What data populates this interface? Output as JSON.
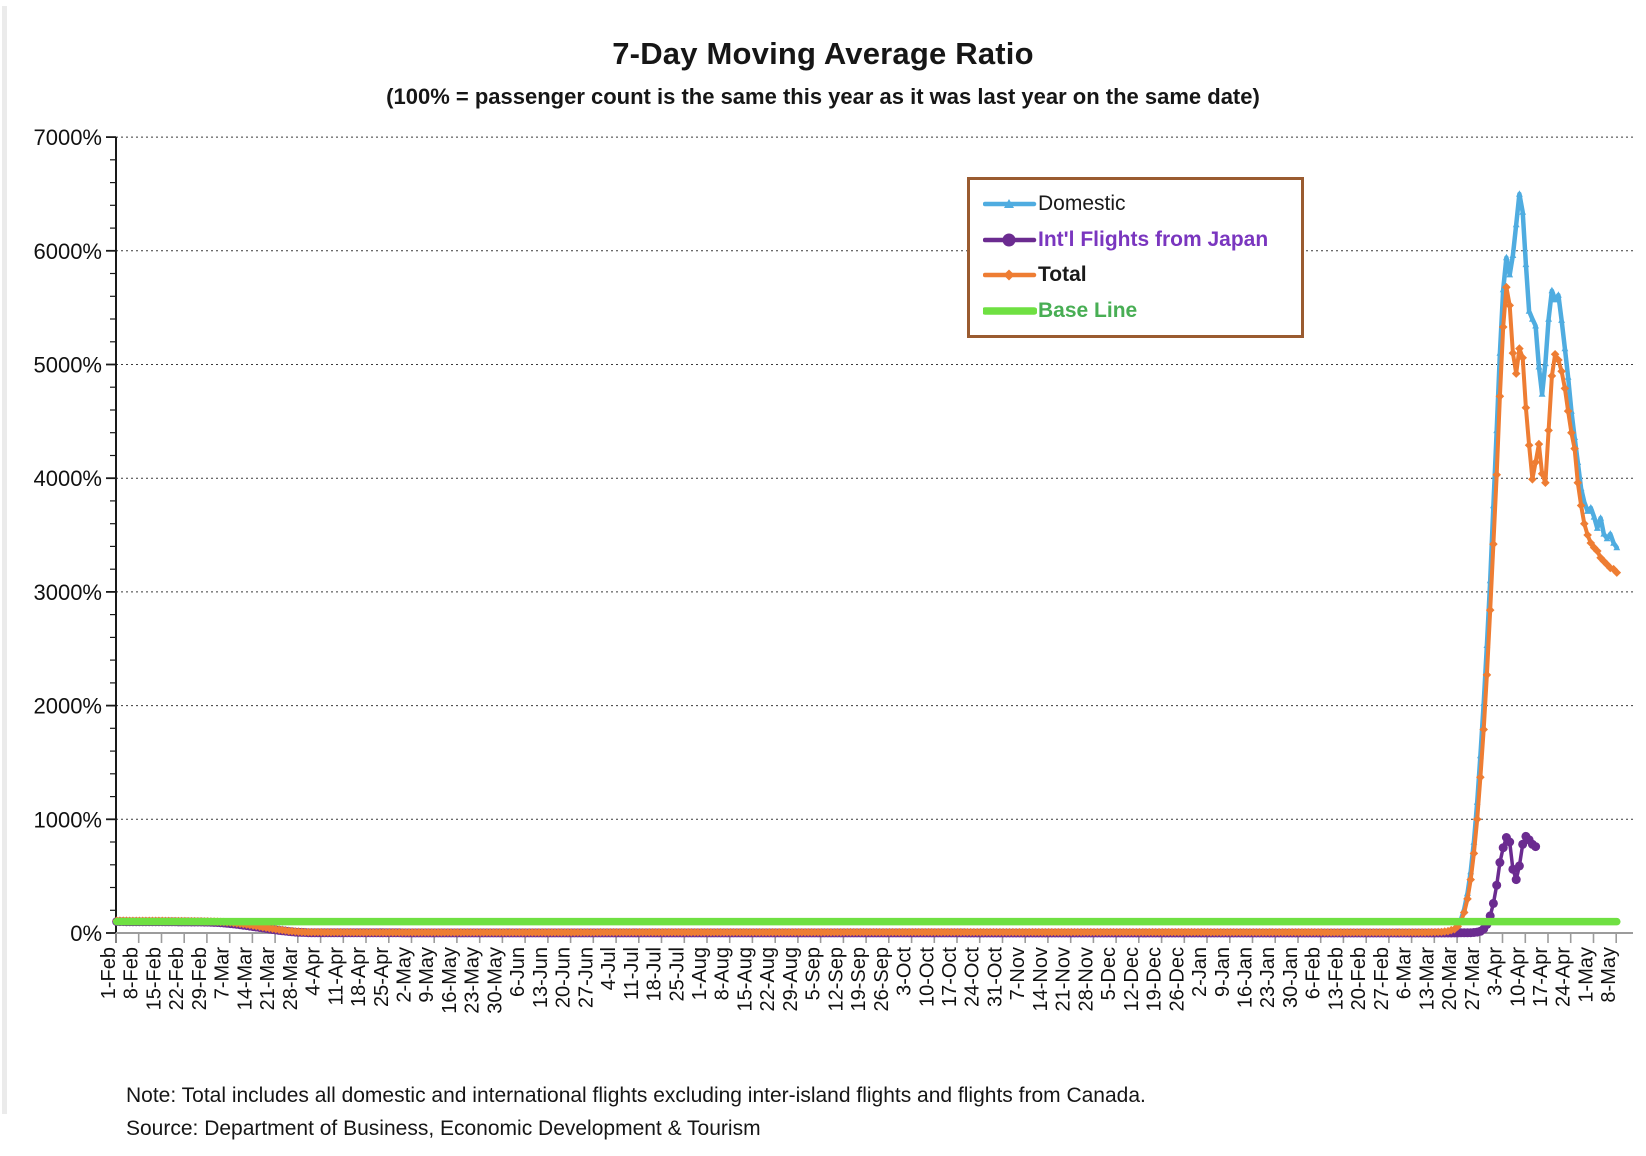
{
  "chart_data": {
    "type": "line",
    "title": "7-Day Moving Average Ratio",
    "subtitle": "(100% = passenger count is the same this year as it was last year on the same date)",
    "grid": "horizontal-dotted",
    "x_axis": {
      "tick_interval_days": 7,
      "label_rotation_deg": -90,
      "tick_labels": [
        "1-Feb",
        "8-Feb",
        "15-Feb",
        "22-Feb",
        "29-Feb",
        "7-Mar",
        "14-Mar",
        "21-Mar",
        "28-Mar",
        "4-Apr",
        "11-Apr",
        "18-Apr",
        "25-Apr",
        "2-May",
        "9-May",
        "16-May",
        "23-May",
        "30-May",
        "6-Jun",
        "13-Jun",
        "20-Jun",
        "27-Jun",
        "4-Jul",
        "11-Jul",
        "18-Jul",
        "25-Jul",
        "1-Aug",
        "8-Aug",
        "15-Aug",
        "22-Aug",
        "29-Aug",
        "5-Sep",
        "12-Sep",
        "19-Sep",
        "26-Sep",
        "3-Oct",
        "10-Oct",
        "17-Oct",
        "24-Oct",
        "31-Oct",
        "7-Nov",
        "14-Nov",
        "21-Nov",
        "28-Nov",
        "5-Dec",
        "12-Dec",
        "19-Dec",
        "26-Dec",
        "2-Jan",
        "9-Jan",
        "16-Jan",
        "23-Jan",
        "30-Jan",
        "6-Feb",
        "13-Feb",
        "20-Feb",
        "27-Feb",
        "6-Mar",
        "13-Mar",
        "20-Mar",
        "27-Mar",
        "3-Apr",
        "10-Apr",
        "17-Apr",
        "24-Apr",
        "1-May",
        "8-May"
      ]
    },
    "y_axis": {
      "min": 0,
      "max": 7000,
      "major_step_pct": 1000,
      "minor_step_pct": 200,
      "tick_labels": [
        "0%",
        "1000%",
        "2000%",
        "3000%",
        "4000%",
        "5000%",
        "6000%",
        "7000%"
      ]
    },
    "legend": {
      "position": "top-right",
      "border_color": "#9A5B30"
    },
    "series": [
      {
        "name": "Domestic",
        "color": "#4FACE0",
        "marker": "triangle",
        "line_width": 4.5,
        "label_color": "#1A1A1A",
        "label_bold": false,
        "points": [
          [
            0,
            103
          ],
          [
            14,
            103
          ],
          [
            28,
            101
          ],
          [
            33,
            99
          ],
          [
            36,
            94
          ],
          [
            39,
            87
          ],
          [
            42,
            76
          ],
          [
            45,
            62
          ],
          [
            48,
            47
          ],
          [
            51,
            33
          ],
          [
            54,
            21
          ],
          [
            57,
            12
          ],
          [
            60,
            7
          ],
          [
            80,
            5
          ],
          [
            120,
            5
          ],
          [
            160,
            6
          ],
          [
            200,
            7
          ],
          [
            240,
            8
          ],
          [
            280,
            7
          ],
          [
            320,
            6
          ],
          [
            360,
            5
          ],
          [
            400,
            5
          ],
          [
            405,
            6
          ],
          [
            408,
            10
          ],
          [
            410,
            18
          ],
          [
            412,
            38
          ],
          [
            413,
            65
          ],
          [
            414,
            120
          ],
          [
            415,
            210
          ],
          [
            416,
            350
          ],
          [
            417,
            540
          ],
          [
            418,
            800
          ],
          [
            419,
            1150
          ],
          [
            420,
            1560
          ],
          [
            421,
            2020
          ],
          [
            422,
            2530
          ],
          [
            423,
            3100
          ],
          [
            424,
            3760
          ],
          [
            425,
            4420
          ],
          [
            426,
            5100
          ],
          [
            427,
            5660
          ],
          [
            428,
            5940
          ],
          [
            429,
            5790
          ],
          [
            430,
            5960
          ],
          [
            431,
            6230
          ],
          [
            432,
            6500
          ],
          [
            433,
            6340
          ],
          [
            434,
            5880
          ],
          [
            435,
            5470
          ],
          [
            436,
            5400
          ],
          [
            437,
            5340
          ],
          [
            438,
            4980
          ],
          [
            439,
            4740
          ],
          [
            440,
            5010
          ],
          [
            441,
            5400
          ],
          [
            442,
            5650
          ],
          [
            443,
            5570
          ],
          [
            444,
            5610
          ],
          [
            445,
            5390
          ],
          [
            446,
            5140
          ],
          [
            447,
            4890
          ],
          [
            448,
            4590
          ],
          [
            449,
            4360
          ],
          [
            450,
            4140
          ],
          [
            451,
            3910
          ],
          [
            452,
            3790
          ],
          [
            453,
            3710
          ],
          [
            454,
            3740
          ],
          [
            455,
            3660
          ],
          [
            456,
            3560
          ],
          [
            457,
            3650
          ],
          [
            458,
            3510
          ],
          [
            459,
            3470
          ],
          [
            460,
            3510
          ],
          [
            461,
            3430
          ],
          [
            462,
            3390
          ]
        ]
      },
      {
        "name": "Int'l Flights from Japan",
        "color": "#6B2B90",
        "marker": "circle",
        "line_width": 3.5,
        "label_color": "#7A36BF",
        "label_bold": true,
        "points": [
          [
            0,
            100
          ],
          [
            14,
            99
          ],
          [
            28,
            96
          ],
          [
            32,
            91
          ],
          [
            35,
            83
          ],
          [
            38,
            73
          ],
          [
            41,
            61
          ],
          [
            44,
            48
          ],
          [
            47,
            35
          ],
          [
            50,
            23
          ],
          [
            53,
            13
          ],
          [
            56,
            6
          ],
          [
            60,
            2
          ],
          [
            100,
            1
          ],
          [
            200,
            1
          ],
          [
            250,
            1
          ],
          [
            270,
            0
          ],
          [
            340,
            0
          ],
          [
            400,
            0
          ],
          [
            410,
            0
          ],
          [
            413,
            1
          ],
          [
            416,
            2
          ],
          [
            418,
            4
          ],
          [
            419,
            8
          ],
          [
            420,
            15
          ],
          [
            421,
            35
          ],
          [
            422,
            75
          ],
          [
            423,
            150
          ],
          [
            424,
            260
          ],
          [
            425,
            420
          ],
          [
            426,
            620
          ],
          [
            427,
            750
          ],
          [
            428,
            840
          ],
          [
            429,
            800
          ],
          [
            430,
            560
          ],
          [
            431,
            470
          ],
          [
            432,
            590
          ],
          [
            433,
            780
          ],
          [
            434,
            850
          ],
          [
            435,
            820
          ],
          [
            436,
            780
          ],
          [
            437,
            760
          ]
        ]
      },
      {
        "name": "Total",
        "color": "#EE7D33",
        "marker": "diamond",
        "line_width": 4,
        "label_color": "#1A1A1A",
        "label_bold": true,
        "points": [
          [
            0,
            108
          ],
          [
            14,
            107
          ],
          [
            28,
            102
          ],
          [
            32,
            98
          ],
          [
            35,
            92
          ],
          [
            38,
            82
          ],
          [
            41,
            70
          ],
          [
            44,
            56
          ],
          [
            47,
            42
          ],
          [
            50,
            29
          ],
          [
            53,
            18
          ],
          [
            56,
            11
          ],
          [
            59,
            7
          ],
          [
            80,
            5
          ],
          [
            120,
            5
          ],
          [
            160,
            6
          ],
          [
            200,
            6
          ],
          [
            240,
            7
          ],
          [
            280,
            7
          ],
          [
            320,
            7
          ],
          [
            360,
            6
          ],
          [
            400,
            5
          ],
          [
            405,
            6
          ],
          [
            408,
            9
          ],
          [
            410,
            16
          ],
          [
            412,
            33
          ],
          [
            413,
            58
          ],
          [
            414,
            105
          ],
          [
            415,
            180
          ],
          [
            416,
            300
          ],
          [
            417,
            470
          ],
          [
            418,
            700
          ],
          [
            419,
            1000
          ],
          [
            420,
            1370
          ],
          [
            421,
            1790
          ],
          [
            422,
            2270
          ],
          [
            423,
            2840
          ],
          [
            424,
            3420
          ],
          [
            425,
            4030
          ],
          [
            426,
            4720
          ],
          [
            427,
            5330
          ],
          [
            428,
            5680
          ],
          [
            429,
            5520
          ],
          [
            430,
            5100
          ],
          [
            431,
            4920
          ],
          [
            432,
            5140
          ],
          [
            433,
            5060
          ],
          [
            434,
            4620
          ],
          [
            435,
            4290
          ],
          [
            436,
            3990
          ],
          [
            437,
            4140
          ],
          [
            438,
            4300
          ],
          [
            439,
            4040
          ],
          [
            440,
            3960
          ],
          [
            441,
            4420
          ],
          [
            442,
            4900
          ],
          [
            443,
            5090
          ],
          [
            444,
            5040
          ],
          [
            445,
            4940
          ],
          [
            446,
            4790
          ],
          [
            447,
            4590
          ],
          [
            448,
            4400
          ],
          [
            449,
            4260
          ],
          [
            450,
            3960
          ],
          [
            451,
            3760
          ],
          [
            452,
            3600
          ],
          [
            453,
            3500
          ],
          [
            454,
            3430
          ],
          [
            455,
            3390
          ],
          [
            456,
            3360
          ],
          [
            457,
            3300
          ],
          [
            458,
            3270
          ],
          [
            459,
            3240
          ],
          [
            460,
            3210
          ],
          [
            461,
            3200
          ],
          [
            462,
            3170
          ]
        ]
      },
      {
        "name": "Base Line",
        "color": "#6FE042",
        "marker": "none",
        "line_width": 7.5,
        "label_color": "#48AE54",
        "label_bold": true,
        "points": [
          [
            0,
            100
          ],
          [
            462,
            100
          ]
        ]
      }
    ]
  },
  "footer": {
    "note": "Note: Total includes all domestic and international flights excluding inter-island flights and flights from Canada.",
    "source": "Source: Department of Business, Economic Development & Tourism"
  }
}
